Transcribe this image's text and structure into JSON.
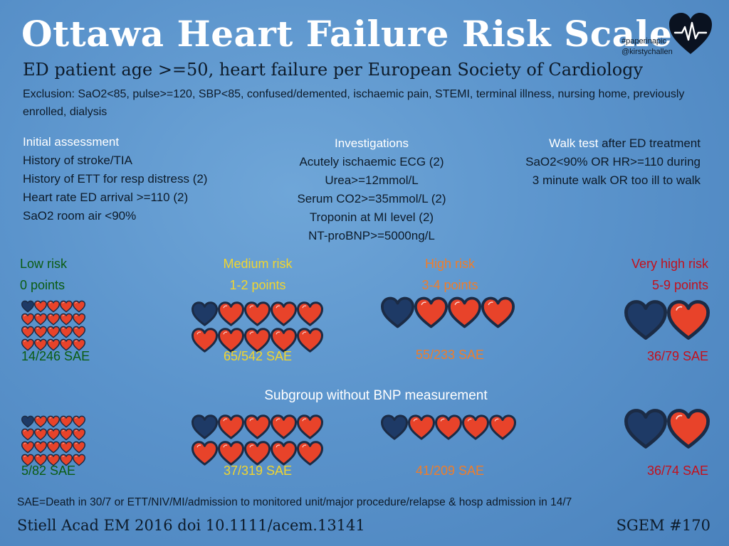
{
  "header": {
    "title": "Ottawa Heart Failure Risk Scale",
    "hashtag": "#paperinapic",
    "handle": "@kirstychallen",
    "subtitle": "ED patient age >=50, heart failure per European Society of Cardiology",
    "exclusion": "Exclusion: SaO2<85, pulse>=120, SBP<85, confused/demented, ischaemic pain, STEMI, terminal illness, nursing home, previously enrolled, dialysis"
  },
  "initial_assessment": {
    "heading": "Initial assessment",
    "items": [
      "History of stroke/TIA",
      "History of ETT for resp distress (2)",
      "Heart rate ED arrival >=110 (2)",
      "SaO2 room air <90%"
    ]
  },
  "investigations": {
    "heading": "Investigations",
    "items": [
      "Acutely ischaemic ECG (2)",
      "Urea>=12mmol/L",
      "Serum CO2>=35mmol/L (2)",
      "Troponin at MI level (2)",
      "NT-proBNP>=5000ng/L"
    ]
  },
  "walk_test": {
    "heading_a": "Walk test",
    "heading_b": " after ED treatment",
    "items": [
      "SaO2<90% OR HR>=110 during",
      "3 minute walk OR too ill to walk"
    ]
  },
  "risk_groups": [
    {
      "label": "Low risk",
      "points": "0 points",
      "sae": "14/246 SAE",
      "subgroup_sae": "5/82 SAE",
      "dark_hearts": 1,
      "total_hearts": 20
    },
    {
      "label": "Medium risk",
      "points": "1-2 points",
      "sae": "65/542 SAE",
      "subgroup_sae": "37/319 SAE",
      "dark_hearts": 1,
      "total_hearts": 10
    },
    {
      "label": "High risk",
      "points": "3-4 points",
      "sae": "55/233 SAE",
      "subgroup_sae": "41/209 SAE",
      "dark_hearts": 1,
      "total_hearts": 4
    },
    {
      "label": "Very high risk",
      "points": "5-9 points",
      "sae": "36/79 SAE",
      "subgroup_sae": "36/74 SAE",
      "dark_hearts": 1,
      "total_hearts": 2
    }
  ],
  "subgroup_title": "Subgroup without BNP measurement",
  "subgroup_hearts": [
    {
      "dark_hearts": 1,
      "total_hearts": 20
    },
    {
      "dark_hearts": 1,
      "total_hearts": 10
    },
    {
      "dark_hearts": 1,
      "total_hearts": 5
    },
    {
      "dark_hearts": 1,
      "total_hearts": 2
    }
  ],
  "footnote": "SAE=Death in 30/7 or ETT/NIV/MI/admission to monitored unit/major procedure/relapse & hosp admission in 14/7",
  "reference": "Stiell  Acad EM 2016 doi 10.1111/acem.13141",
  "episode": "SGEM #170",
  "colors": {
    "heart_dark": "#1e3a66",
    "heart_red": "#e8432a",
    "outline": "#1b2b45",
    "low": "#0b5c12",
    "medium": "#f1d52e",
    "high": "#ef7d2a",
    "very_high": "#c4101c"
  }
}
